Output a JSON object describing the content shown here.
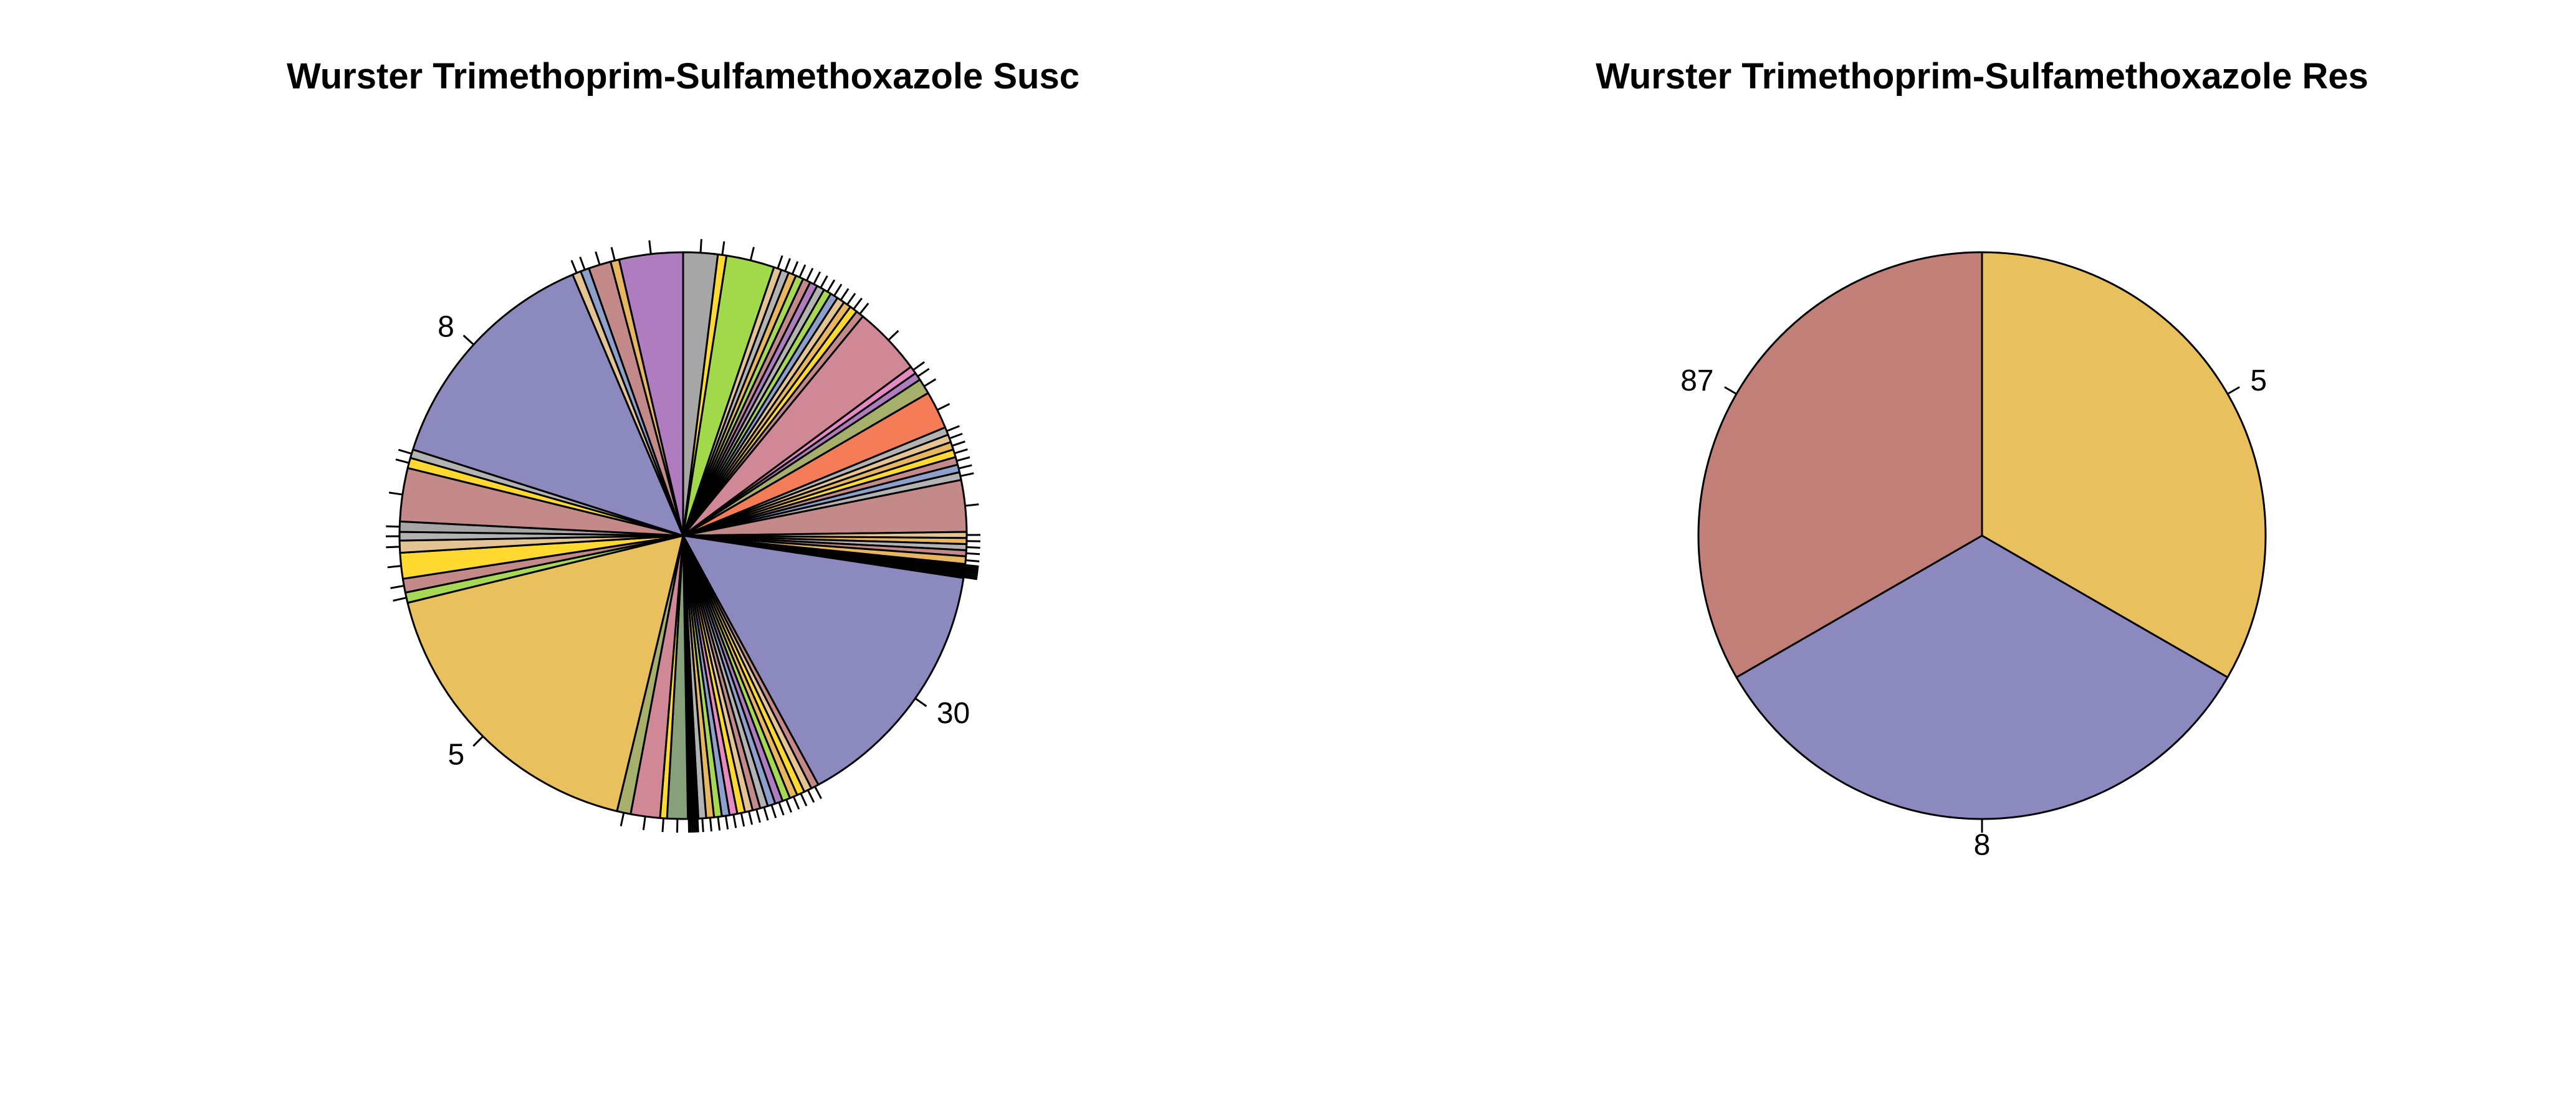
{
  "chart_data": [
    {
      "type": "pie",
      "title": "Wurster Trimethoprim-Sulfamethoxazole Susc",
      "start": "top",
      "direction": "clockwise",
      "slices": [
        {
          "label": "",
          "value": 2.0,
          "color": "#a6a6a6"
        },
        {
          "label": "",
          "value": 0.5,
          "color": "#ffd92f"
        },
        {
          "label": "",
          "value": 2.8,
          "color": "#a1d94a"
        },
        {
          "label": "",
          "value": 0.45,
          "color": "#e5c494"
        },
        {
          "label": "",
          "value": 0.45,
          "color": "#b3b3b3"
        },
        {
          "label": "",
          "value": 0.45,
          "color": "#e7b65e"
        },
        {
          "label": "",
          "value": 0.45,
          "color": "#a6d854"
        },
        {
          "label": "",
          "value": 0.45,
          "color": "#c48a8a"
        },
        {
          "label": "",
          "value": 0.45,
          "color": "#b07cc0"
        },
        {
          "label": "",
          "value": 0.45,
          "color": "#b3b3b3"
        },
        {
          "label": "",
          "value": 0.45,
          "color": "#a6d854"
        },
        {
          "label": "",
          "value": 0.45,
          "color": "#8da0cb"
        },
        {
          "label": "",
          "value": 0.45,
          "color": "#e5c494"
        },
        {
          "label": "",
          "value": 0.45,
          "color": "#e7b65e"
        },
        {
          "label": "",
          "value": 0.45,
          "color": "#ffd92f"
        },
        {
          "label": "",
          "value": 0.45,
          "color": "#c48a8a"
        },
        {
          "label": "",
          "value": 4.0,
          "color": "#d08896"
        },
        {
          "label": "",
          "value": 0.45,
          "color": "#e78ac3"
        },
        {
          "label": "",
          "value": 0.45,
          "color": "#b07cc0"
        },
        {
          "label": "",
          "value": 0.9,
          "color": "#a6b06a"
        },
        {
          "label": "",
          "value": 2.2,
          "color": "#f47c56"
        },
        {
          "label": "",
          "value": 0.45,
          "color": "#b3b3b3"
        },
        {
          "label": "",
          "value": 0.45,
          "color": "#e5c494"
        },
        {
          "label": "",
          "value": 0.45,
          "color": "#e7b65e"
        },
        {
          "label": "",
          "value": 0.45,
          "color": "#ffd92f"
        },
        {
          "label": "",
          "value": 0.45,
          "color": "#c48a8a"
        },
        {
          "label": "",
          "value": 0.45,
          "color": "#8da0cb"
        },
        {
          "label": "",
          "value": 0.45,
          "color": "#b3b3b3"
        },
        {
          "label": "",
          "value": 3.0,
          "color": "#c48a8a"
        },
        {
          "label": "",
          "value": 0.35,
          "color": "#e5c494"
        },
        {
          "label": "",
          "value": 0.35,
          "color": "#e7b65e"
        },
        {
          "label": "",
          "value": 0.35,
          "color": "#b3b3b3"
        },
        {
          "label": "",
          "value": 0.35,
          "color": "#c48a8a"
        },
        {
          "label": "",
          "value": 0.45,
          "color": "#e7b65e"
        },
        {
          "label": "",
          "value": 0.1,
          "color": "#e5c494"
        },
        {
          "label": "",
          "value": 0.1,
          "color": "#e7b65e"
        },
        {
          "label": "",
          "value": 0.1,
          "color": "#b3b3b3"
        },
        {
          "label": "",
          "value": 0.1,
          "color": "#c48a8a"
        },
        {
          "label": "",
          "value": 0.1,
          "color": "#a6d854"
        },
        {
          "label": "",
          "value": 0.1,
          "color": "#e78ac3"
        },
        {
          "label": "",
          "value": 0.1,
          "color": "#8da0cb"
        },
        {
          "label": "",
          "value": 0.1,
          "color": "#ffd92f"
        },
        {
          "label": "30",
          "value": 15.0,
          "color": "#8b89be"
        },
        {
          "label": "",
          "value": 0.45,
          "color": "#c48a8a"
        },
        {
          "label": "",
          "value": 0.45,
          "color": "#e5c494"
        },
        {
          "label": "",
          "value": 0.45,
          "color": "#ffd92f"
        },
        {
          "label": "",
          "value": 0.45,
          "color": "#e7b65e"
        },
        {
          "label": "",
          "value": 0.45,
          "color": "#a6d854"
        },
        {
          "label": "",
          "value": 0.45,
          "color": "#b07cc0"
        },
        {
          "label": "",
          "value": 0.45,
          "color": "#8da0cb"
        },
        {
          "label": "",
          "value": 0.45,
          "color": "#b3b3b3"
        },
        {
          "label": "",
          "value": 0.45,
          "color": "#c48a8a"
        },
        {
          "label": "",
          "value": 0.45,
          "color": "#e5c494"
        },
        {
          "label": "",
          "value": 0.45,
          "color": "#ffd92f"
        },
        {
          "label": "",
          "value": 0.45,
          "color": "#e78ac3"
        },
        {
          "label": "",
          "value": 0.45,
          "color": "#8da0cb"
        },
        {
          "label": "",
          "value": 0.45,
          "color": "#a6d854"
        },
        {
          "label": "",
          "value": 0.45,
          "color": "#e7b65e"
        },
        {
          "label": "",
          "value": 0.45,
          "color": "#b3b3b3"
        },
        {
          "label": "",
          "value": 0.1,
          "color": "#c48a8a"
        },
        {
          "label": "",
          "value": 0.1,
          "color": "#e5c494"
        },
        {
          "label": "",
          "value": 0.1,
          "color": "#8da0cb"
        },
        {
          "label": "",
          "value": 0.1,
          "color": "#ffd92f"
        },
        {
          "label": "",
          "value": 0.1,
          "color": "#a6d854"
        },
        {
          "label": "",
          "value": 0.1,
          "color": "#e7b65e"
        },
        {
          "label": "",
          "value": 1.2,
          "color": "#86a07a"
        },
        {
          "label": "",
          "value": 0.4,
          "color": "#ffd92f"
        },
        {
          "label": "",
          "value": 1.7,
          "color": "#d08896"
        },
        {
          "label": "",
          "value": 0.8,
          "color": "#a6b06a"
        },
        {
          "label": "5",
          "value": 17.8,
          "color": "#e8c05e"
        },
        {
          "label": "",
          "value": 0.6,
          "color": "#a6d854"
        },
        {
          "label": "",
          "value": 0.8,
          "color": "#c48a8a"
        },
        {
          "label": "",
          "value": 1.5,
          "color": "#ffd92f"
        },
        {
          "label": "",
          "value": 0.7,
          "color": "#e5c494"
        },
        {
          "label": "",
          "value": 0.5,
          "color": "#b3b3b3"
        },
        {
          "label": "",
          "value": 0.6,
          "color": "#a6a6a6"
        },
        {
          "label": "",
          "value": 3.1,
          "color": "#c48a8a"
        },
        {
          "label": "",
          "value": 0.6,
          "color": "#ffd92f"
        },
        {
          "label": "",
          "value": 0.5,
          "color": "#b3b3b3"
        },
        {
          "label": "8",
          "value": 14.0,
          "color": "#8b89be"
        },
        {
          "label": "",
          "value": 0.5,
          "color": "#e5c494"
        },
        {
          "label": "",
          "value": 0.5,
          "color": "#8da0cb"
        },
        {
          "label": "",
          "value": 1.3,
          "color": "#c48a8a"
        },
        {
          "label": "",
          "value": 0.5,
          "color": "#e7b65e"
        },
        {
          "label": "",
          "value": 3.7,
          "color": "#b07cc0"
        }
      ]
    },
    {
      "type": "pie",
      "title": "Wurster Trimethoprim-Sulfamethoxazole Res",
      "start": "top",
      "direction": "clockwise",
      "slices": [
        {
          "label": "5",
          "value": 1,
          "color": "#e8c05e"
        },
        {
          "label": "8",
          "value": 1,
          "color": "#8b89be"
        },
        {
          "label": "87",
          "value": 1,
          "color": "#c27f78"
        }
      ]
    }
  ]
}
